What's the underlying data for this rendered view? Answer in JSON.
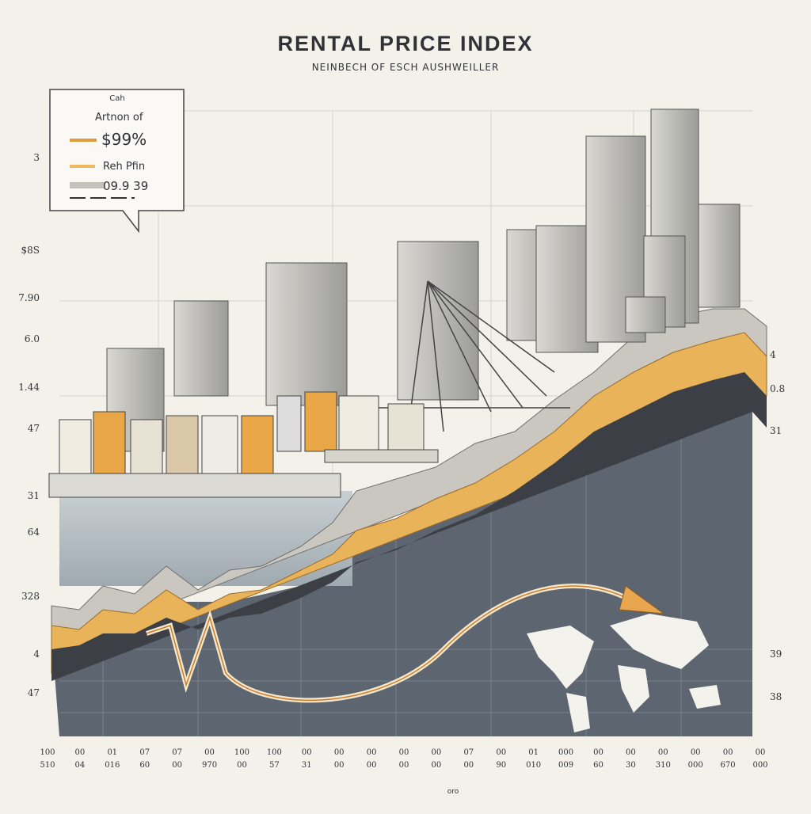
{
  "header": {
    "title": "RENTAL PRICE INDEX",
    "subtitle": "NEINBECH OF ESCH AUSHWEILLER"
  },
  "legend": {
    "heading": "Cah",
    "items": [
      {
        "label": "Artnon of",
        "value": "$99%"
      },
      {
        "label": "Reh Pfin",
        "value": "09.9 39"
      }
    ]
  },
  "left_axis_labels": [
    "3",
    "$8S",
    "7.90",
    "6.0",
    "1.44",
    "47",
    "31",
    "64",
    "328",
    "4",
    "47"
  ],
  "right_axis_labels": [
    "4",
    "0.8",
    "31",
    "39",
    "38"
  ],
  "bottom_labels": {
    "row1": [
      "100",
      "00",
      "01",
      "07",
      "07",
      "00",
      "100",
      "100",
      "00",
      "00",
      "00",
      "00",
      "00",
      "07",
      "00",
      "01",
      "000",
      "00",
      "00",
      "00",
      "00",
      "00",
      "00"
    ],
    "row2": [
      "510",
      "04",
      "016",
      "60",
      "00",
      "970",
      "00",
      "57",
      "31",
      "00",
      "00",
      "00",
      "00",
      "00",
      "90",
      "010",
      "009",
      "60",
      "30",
      "310",
      "000",
      "670",
      "000"
    ]
  },
  "footer": "oro"
}
